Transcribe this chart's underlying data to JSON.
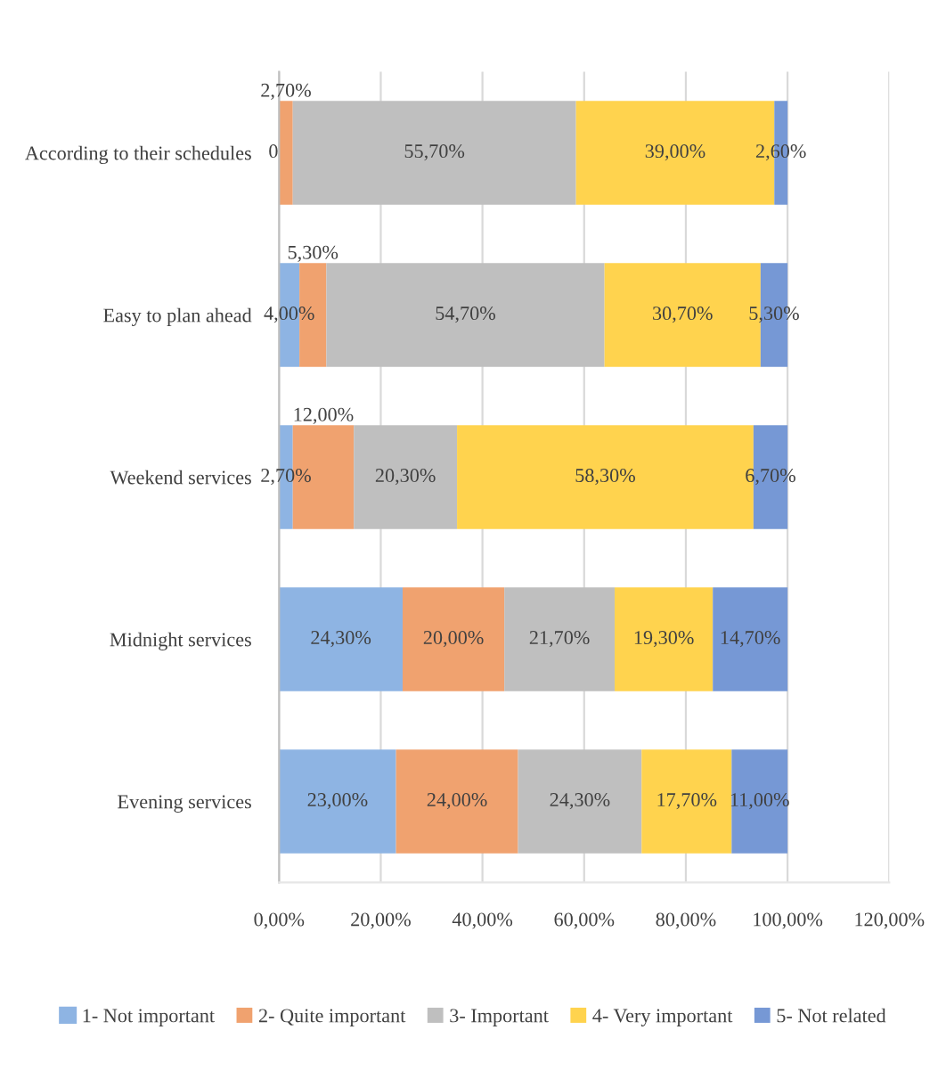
{
  "chart_data": {
    "type": "bar",
    "orientation": "horizontal",
    "stacked": true,
    "categories": [
      "According to their schedules",
      "Easy to plan ahead",
      "Weekend services",
      "Midnight services",
      "Evening services"
    ],
    "series": [
      {
        "name": "1- Not important",
        "color": "#8eb4e3",
        "values": [
          0,
          4.0,
          2.7,
          24.3,
          23.0
        ],
        "value_labels": [
          "0",
          "4,00%",
          "2,70%",
          "24,30%",
          "23,00%"
        ]
      },
      {
        "name": "2- Quite important",
        "color": "#f0a26f",
        "values": [
          2.7,
          5.3,
          12.0,
          20.0,
          24.0
        ],
        "value_labels": [
          "2,70%",
          "5,30%",
          "12,00%",
          "20,00%",
          "24,00%"
        ]
      },
      {
        "name": "3- Important",
        "color": "#bfbfbf",
        "values": [
          55.7,
          54.7,
          20.3,
          21.7,
          24.3
        ],
        "value_labels": [
          "55,70%",
          "54,70%",
          "20,30%",
          "21,70%",
          "24,30%"
        ]
      },
      {
        "name": "4- Very important",
        "color": "#ffd34e",
        "values": [
          39.0,
          30.7,
          58.3,
          19.3,
          17.7
        ],
        "value_labels": [
          "39,00%",
          "30,70%",
          "58,30%",
          "19,30%",
          "17,70%"
        ]
      },
      {
        "name": "5- Not related",
        "color": "#7698d5",
        "values": [
          2.6,
          5.3,
          6.7,
          14.7,
          11.0
        ],
        "value_labels": [
          "2,60%",
          "5,30%",
          "6,70%",
          "14,70%",
          "11,00%"
        ]
      }
    ],
    "xlim": [
      0,
      120
    ],
    "xticks": [
      {
        "value": 0,
        "label": "0,00%"
      },
      {
        "value": 20,
        "label": "20,00%"
      },
      {
        "value": 40,
        "label": "40,00%"
      },
      {
        "value": 60,
        "label": "60,00%"
      },
      {
        "value": 80,
        "label": "80,00%"
      },
      {
        "value": 100,
        "label": "100,00%"
      },
      {
        "value": 120,
        "label": "120,00%"
      }
    ],
    "grid": "x",
    "legend": "bottom"
  }
}
